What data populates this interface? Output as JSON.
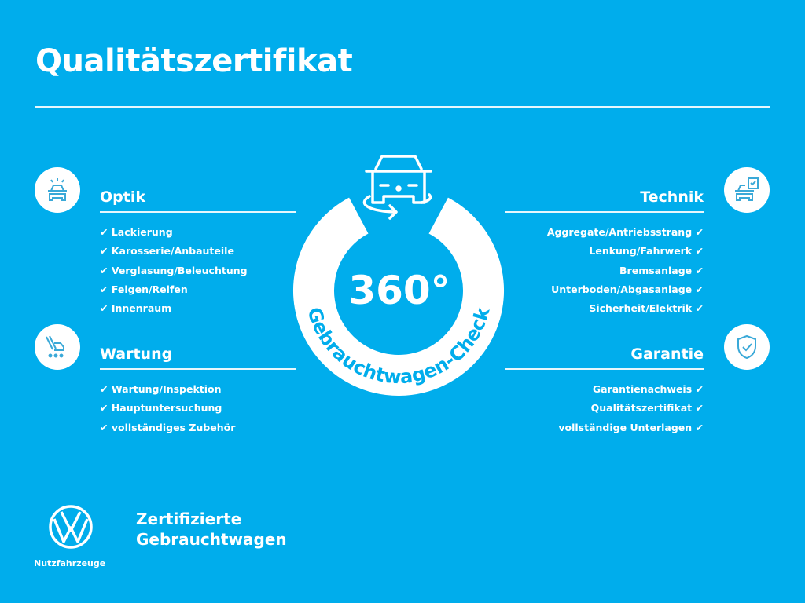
{
  "title": "Qualitätszertifikat",
  "center": {
    "big": "360°",
    "arc_text": "Gebrauchtwagen-Check",
    "icon": "car-rotate-icon"
  },
  "check": "✔",
  "sections": {
    "optik": {
      "title": "Optik",
      "icon": "car-lights-icon",
      "items": [
        "Lackierung",
        "Karosserie/Anbauteile",
        "Verglasung/Beleuchtung",
        "Felgen/Reifen",
        "Innenraum"
      ]
    },
    "wartung": {
      "title": "Wartung",
      "icon": "maintenance-icon",
      "items": [
        "Wartung/Inspektion",
        "Hauptuntersuchung",
        "vollständiges Zubehör"
      ]
    },
    "technik": {
      "title": "Technik",
      "icon": "car-checklist-icon",
      "items": [
        "Aggregate/Antriebsstrang",
        "Lenkung/Fahrwerk",
        "Bremsanlage",
        "Unterboden/Abgasanlage",
        "Sicherheit/Elektrik"
      ]
    },
    "garantie": {
      "title": "Garantie",
      "icon": "shield-check-icon",
      "items": [
        "Garantienachweis",
        "Qualitätszertifikat",
        "vollständige Unterlagen"
      ]
    }
  },
  "brand": {
    "line1": "Zertifizierte",
    "line2": "Gebrauchtwagen",
    "sub": "Nutzfahrzeuge",
    "logo": "vw-logo"
  },
  "colors": {
    "background": "#00adec",
    "foreground": "#ffffff"
  }
}
